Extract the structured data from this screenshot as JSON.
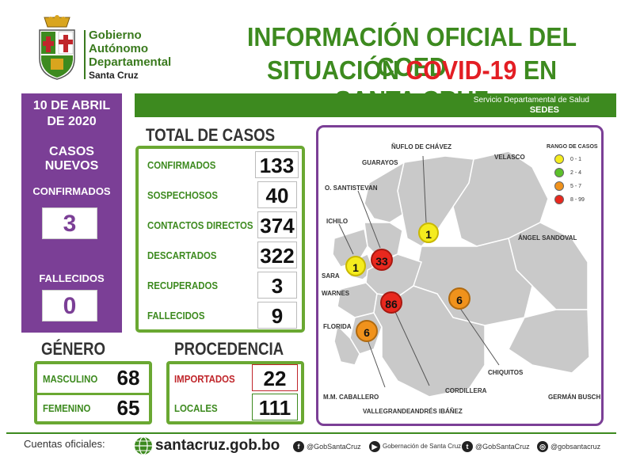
{
  "header": {
    "gov_line1": "Gobierno",
    "gov_line2": "Autónomo",
    "gov_line3": "Departamental",
    "gov_line4": "Santa Cruz",
    "title_line1": "INFORMACIÓN OFICIAL DEL COED",
    "title_line2_a": "SITUACIÓN ",
    "title_line2_b": "COVID-19",
    "title_line2_c": " EN SANTA CRUZ"
  },
  "banner": {
    "line1": "Servicio Departamental de Salud",
    "line2": "SEDES"
  },
  "left_panel": {
    "date_line1": "10 DE ABRIL",
    "date_line2": "DE 2020",
    "new_cases_title": "CASOS NUEVOS",
    "confirmed_label": "CONFIRMADOS",
    "confirmed_value": "3",
    "deaths_label": "FALLECIDOS",
    "deaths_value": "0"
  },
  "total_casos": {
    "title": "TOTAL DE CASOS",
    "rows": [
      {
        "label": "CONFIRMADOS",
        "value": "133"
      },
      {
        "label": "SOSPECHOSOS",
        "value": "40"
      },
      {
        "label": "CONTACTOS DIRECTOS",
        "value": "374"
      },
      {
        "label": "DESCARTADOS",
        "value": "322"
      },
      {
        "label": "RECUPERADOS",
        "value": "3"
      },
      {
        "label": "FALLECIDOS",
        "value": "9"
      }
    ]
  },
  "genero": {
    "title": "GÉNERO",
    "rows": [
      {
        "label": "MASCULINO",
        "value": "68"
      },
      {
        "label": "FEMENINO",
        "value": "65"
      }
    ]
  },
  "procedencia": {
    "title": "PROCEDENCIA",
    "rows": [
      {
        "label": "IMPORTADOS",
        "value": "22"
      },
      {
        "label": "LOCALES",
        "value": "111"
      }
    ]
  },
  "map": {
    "provinces": {
      "nuflo": "ÑUFLO DE CHÁVEZ",
      "velasco": "VELASCO",
      "guarayos": "GUARAYOS",
      "santistevan": "O. SANTISTEVAN",
      "ichilo": "ICHILO",
      "sandoval": "ÁNGEL SANDOVAL",
      "sara": "SARA",
      "warnes": "WARNES",
      "florida": "FLORIDA",
      "chiquitos": "CHIQUITOS",
      "cordillera": "CORDILLERA",
      "caballero": "M.M. CABALLERO",
      "busch": "GERMÁN BUSCH",
      "vallegrande": "VALLEGRANDE",
      "ibanez": "ANDRÉS IBÁÑEZ"
    },
    "markers": [
      {
        "name": "nuflo",
        "value": "1",
        "color": "#f5ec1e"
      },
      {
        "name": "santistevan",
        "value": "33",
        "color": "#e8281e"
      },
      {
        "name": "sara",
        "value": "1",
        "color": "#f5ec1e"
      },
      {
        "name": "ibanez",
        "value": "86",
        "color": "#e8281e"
      },
      {
        "name": "chiquitos",
        "value": "6",
        "color": "#f0921c"
      },
      {
        "name": "vallegrande",
        "value": "6",
        "color": "#f0921c"
      }
    ],
    "legend": {
      "title": "RANGO DE CASOS",
      "items": [
        {
          "label": "0 - 1",
          "color": "#f5ec1e"
        },
        {
          "label": "2 - 4",
          "color": "#5cc02a"
        },
        {
          "label": "5 - 7",
          "color": "#f0921c"
        },
        {
          "label": "8 - 99",
          "color": "#e8281e"
        }
      ]
    }
  },
  "footer": {
    "cuentas": "Cuentas oficiales:",
    "website": "santacruz.gob.bo",
    "facebook": "@GobSantaCruz",
    "youtube": "Gobernación de Santa Cruz",
    "twitter": "@GobSantaCruz",
    "instagram": "@gobsantacruz"
  },
  "colors": {
    "purple": "#7b3f96",
    "green": "#3d8a1f",
    "red": "#e31e24"
  }
}
